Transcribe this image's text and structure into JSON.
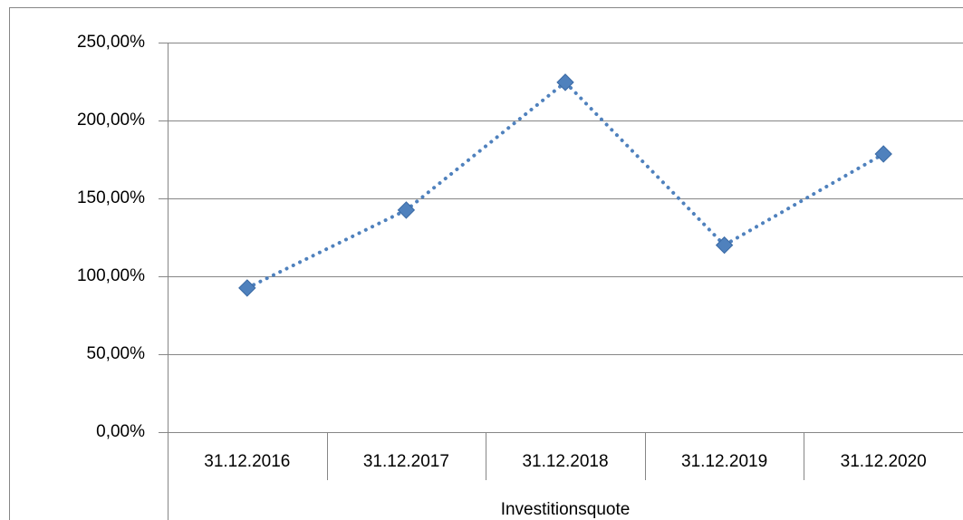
{
  "chart_data": {
    "type": "line",
    "x_label": "Investitionsquote",
    "categories": [
      "31.12.2016",
      "31.12.2017",
      "31.12.2018",
      "31.12.2019",
      "31.12.2020"
    ],
    "series": [
      {
        "color": "#4f81bd",
        "values": [
          92.5,
          142.5,
          224.5,
          120,
          178.5
        ]
      }
    ],
    "ylim": [
      0,
      250
    ],
    "yticks": [
      {
        "value": 0,
        "label": "0,00%"
      },
      {
        "value": 50,
        "label": "50,00%"
      },
      {
        "value": 100,
        "label": "100,00%"
      },
      {
        "value": 150,
        "label": "150,00%"
      },
      {
        "value": 200,
        "label": "200,00%"
      },
      {
        "value": 250,
        "label": "250,00%"
      }
    ],
    "grid": true
  }
}
